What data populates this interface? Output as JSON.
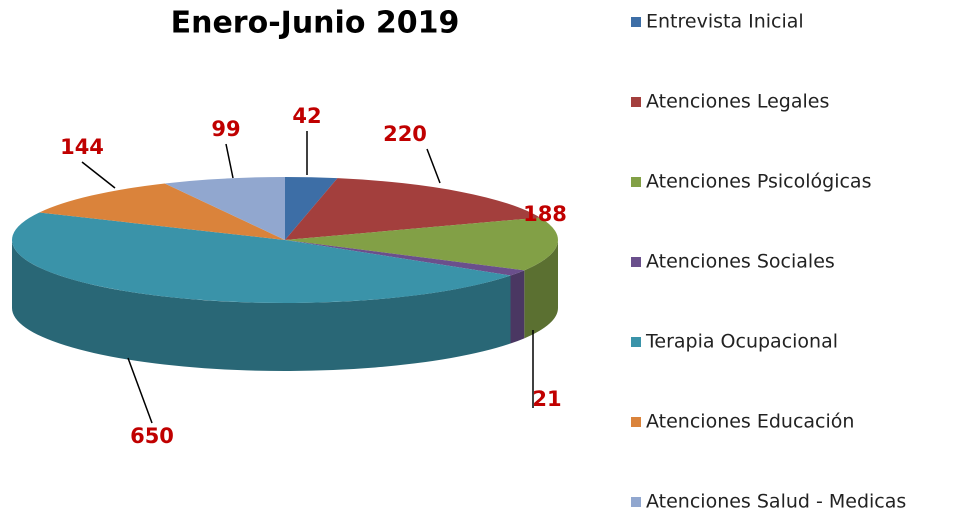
{
  "chart_data": {
    "type": "pie",
    "title": "Enero-Junio 2019",
    "categories": [
      "Entrevista Inicial",
      "Atenciones Legales",
      "Atenciones Psicológicas",
      "Atenciones Sociales",
      "Terapia Ocupacional",
      "Atenciones Educación",
      "Atenciones Salud - Medicas"
    ],
    "values": [
      42,
      220,
      188,
      21,
      650,
      144,
      99
    ],
    "colors": [
      "#3d6ea6",
      "#a33f3d",
      "#82a046",
      "#6a4f8c",
      "#3a93a9",
      "#da833b",
      "#91a7cf"
    ],
    "label_color": "#c00000",
    "legend": "right"
  }
}
